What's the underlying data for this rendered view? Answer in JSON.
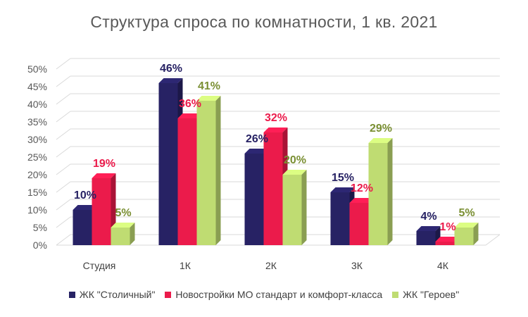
{
  "chart_data": {
    "type": "bar",
    "title": "Структура спроса по комнатности, 1 кв. 2021",
    "categories": [
      "Студия",
      "1К",
      "2К",
      "3К",
      "4К"
    ],
    "ylim": [
      0,
      50
    ],
    "yticks": [
      "0%",
      "5%",
      "10%",
      "15%",
      "20%",
      "25%",
      "30%",
      "35%",
      "40%",
      "45%",
      "50%"
    ],
    "series": [
      {
        "name": "ЖК \"Столичный\"",
        "values": [
          10,
          46,
          26,
          15,
          4
        ],
        "labels": [
          "10%",
          "46%",
          "26%",
          "15%",
          "4%"
        ],
        "color": "#272264",
        "label_color": "#272264"
      },
      {
        "name": "Новостройки МО стандарт и комфорт-класса",
        "values": [
          19,
          36,
          32,
          12,
          1
        ],
        "labels": [
          "19%",
          "36%",
          "32%",
          "12%",
          "1%"
        ],
        "color": "#eb1b4b",
        "label_color": "#eb1b4b"
      },
      {
        "name": "ЖК \"Героев\"",
        "values": [
          5,
          41,
          20,
          29,
          5
        ],
        "labels": [
          "5%",
          "41%",
          "20%",
          "29%",
          "5%"
        ],
        "color": "#bfdc72",
        "label_color": "#7a8f33"
      }
    ],
    "grid": true,
    "legend_position": "bottom",
    "style": "3d-clustered-column"
  }
}
